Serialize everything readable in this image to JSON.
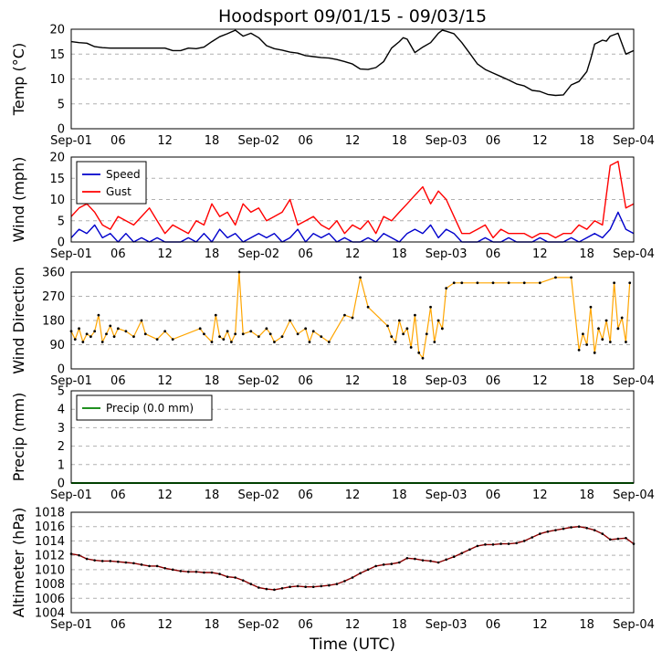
{
  "title": "Hoodsport 09/01/15 - 09/03/15",
  "xlabel": "Time (UTC)",
  "x_ticks": [
    "Sep-01",
    "06",
    "12",
    "18",
    "Sep-02",
    "06",
    "12",
    "18",
    "Sep-03",
    "06",
    "12",
    "18",
    "Sep-04"
  ],
  "x_range_hours": [
    0,
    72
  ],
  "colors": {
    "temp": "#000000",
    "speed": "#0000cc",
    "gust": "#ff0000",
    "direction_line": "#ffa500",
    "direction_marker": "#000000",
    "precip": "#008000",
    "altimeter_line": "#8b0000",
    "altimeter_marker": "#000000"
  },
  "chart_data": [
    {
      "id": "temp",
      "type": "line",
      "ylabel": "Temp (°C)",
      "ylim": [
        0,
        20
      ],
      "yticks": [
        "0",
        "5",
        "10",
        "15",
        "20"
      ],
      "grid": true,
      "series": [
        {
          "key": "temp",
          "x": [
            0,
            1,
            2,
            3,
            4,
            5,
            6,
            8,
            10,
            12,
            13,
            14,
            15,
            16,
            17,
            18,
            19,
            20,
            21,
            22,
            23,
            24,
            25,
            26,
            27,
            28,
            29,
            30,
            31,
            32,
            33,
            34,
            35,
            36,
            37,
            38,
            39,
            40,
            41,
            42,
            42.5,
            43,
            44,
            45,
            46,
            47,
            47.5,
            48,
            49,
            50,
            51,
            52,
            53,
            54,
            55,
            56,
            57,
            58,
            59,
            60,
            61,
            62,
            63,
            64,
            65,
            66,
            66.5,
            67,
            68,
            68.5,
            69,
            70,
            71,
            72
          ],
          "y": [
            17.5,
            17.3,
            17.2,
            16.5,
            16.3,
            16.2,
            16.2,
            16.2,
            16.2,
            16.2,
            15.7,
            15.7,
            16.2,
            16.1,
            16.4,
            17.5,
            18.5,
            19.1,
            19.8,
            18.6,
            19.2,
            18.3,
            16.7,
            16.1,
            15.8,
            15.4,
            15.2,
            14.7,
            14.5,
            14.3,
            14.2,
            13.9,
            13.5,
            13.0,
            12.0,
            11.9,
            12.3,
            13.5,
            16.2,
            17.5,
            18.3,
            18.0,
            15.3,
            16.4,
            17.3,
            19.2,
            19.8,
            19.6,
            19.1,
            17.3,
            15.2,
            13.0,
            11.9,
            11.2,
            10.5,
            9.8,
            9.0,
            8.6,
            7.7,
            7.5,
            6.9,
            6.7,
            6.8,
            8.8,
            9.5,
            11.5,
            14.0,
            17.0,
            17.8,
            17.6,
            18.6,
            19.2,
            15.0,
            15.7
          ]
        }
      ]
    },
    {
      "id": "wind",
      "type": "line",
      "ylabel": "Wind (mph)",
      "ylim": [
        0,
        20
      ],
      "yticks": [
        "0",
        "5",
        "10",
        "15",
        "20"
      ],
      "grid": true,
      "legend": {
        "position": "top-left"
      },
      "series": [
        {
          "key": "speed",
          "name": "Speed",
          "x": [
            0,
            1,
            2,
            3,
            4,
            5,
            6,
            7,
            8,
            9,
            10,
            11,
            12,
            13,
            14,
            15,
            16,
            17,
            18,
            19,
            20,
            21,
            22,
            23,
            24,
            25,
            26,
            27,
            28,
            29,
            30,
            31,
            32,
            33,
            34,
            35,
            36,
            37,
            38,
            39,
            40,
            41,
            42,
            43,
            44,
            45,
            46,
            47,
            48,
            49,
            50,
            51,
            52,
            53,
            54,
            55,
            56,
            57,
            58,
            59,
            60,
            61,
            62,
            63,
            64,
            65,
            66,
            67,
            68,
            69,
            70,
            71,
            72
          ],
          "y": [
            1,
            3,
            2,
            4,
            1,
            2,
            0,
            2,
            0,
            1,
            0,
            1,
            0,
            0,
            0,
            1,
            0,
            2,
            0,
            3,
            1,
            2,
            0,
            1,
            2,
            1,
            2,
            0,
            1,
            3,
            0,
            2,
            1,
            2,
            0,
            1,
            0,
            0,
            1,
            0,
            2,
            1,
            0,
            2,
            3,
            2,
            4,
            1,
            3,
            2,
            0,
            0,
            0,
            1,
            0,
            0,
            1,
            0,
            0,
            0,
            1,
            0,
            0,
            0,
            1,
            0,
            1,
            2,
            1,
            3,
            7,
            3,
            2
          ]
        },
        {
          "key": "gust",
          "name": "Gust",
          "x": [
            0,
            1,
            2,
            3,
            4,
            5,
            6,
            7,
            8,
            9,
            10,
            11,
            12,
            13,
            14,
            15,
            16,
            17,
            18,
            19,
            20,
            21,
            22,
            23,
            24,
            25,
            26,
            27,
            28,
            29,
            30,
            31,
            32,
            33,
            34,
            35,
            36,
            37,
            38,
            39,
            40,
            41,
            42,
            43,
            44,
            45,
            46,
            47,
            48,
            49,
            50,
            51,
            52,
            53,
            54,
            55,
            56,
            57,
            58,
            59,
            60,
            61,
            62,
            63,
            64,
            65,
            66,
            67,
            68,
            69,
            70,
            71,
            72
          ],
          "y": [
            6,
            8,
            9,
            7,
            4,
            3,
            6,
            5,
            4,
            6,
            8,
            5,
            2,
            4,
            3,
            2,
            5,
            4,
            9,
            6,
            7,
            4,
            9,
            7,
            8,
            5,
            6,
            7,
            10,
            4,
            5,
            6,
            4,
            3,
            5,
            2,
            4,
            3,
            5,
            2,
            6,
            5,
            7,
            9,
            11,
            13,
            9,
            12,
            10,
            6,
            2,
            2,
            3,
            4,
            1,
            3,
            2,
            2,
            2,
            1,
            2,
            2,
            1,
            2,
            2,
            4,
            3,
            5,
            4,
            18,
            19,
            8,
            9
          ]
        }
      ]
    },
    {
      "id": "direction",
      "type": "scatter",
      "ylabel": "Wind Direction",
      "ylim": [
        0,
        360
      ],
      "yticks": [
        "0",
        "90",
        "180",
        "270",
        "360"
      ],
      "grid": true,
      "series": [
        {
          "key": "direction",
          "x": [
            0,
            0.5,
            1,
            1.5,
            2,
            2.5,
            3,
            3.5,
            4,
            4.5,
            5,
            5.5,
            6,
            7,
            8,
            9,
            9.5,
            11,
            12,
            13,
            16.5,
            17,
            18,
            18.5,
            19,
            19.5,
            20,
            20.5,
            21,
            21.5,
            22,
            23,
            24,
            25,
            25.5,
            26,
            27,
            28,
            29,
            30,
            30.5,
            31,
            32,
            33,
            35,
            36,
            37,
            38,
            40.5,
            41,
            41.5,
            42,
            42.5,
            43,
            43.5,
            44,
            44.5,
            45,
            45.5,
            46,
            46.5,
            47,
            47.5,
            48,
            49,
            50,
            52,
            54,
            56,
            58,
            60,
            62,
            64,
            65,
            65.5,
            66,
            66.5,
            67,
            67.5,
            68,
            68.5,
            69,
            69.5,
            70,
            70.5,
            71,
            71.5
          ],
          "y": [
            140,
            110,
            150,
            100,
            130,
            120,
            140,
            200,
            100,
            130,
            160,
            120,
            150,
            140,
            120,
            180,
            130,
            110,
            140,
            110,
            150,
            130,
            100,
            200,
            120,
            110,
            140,
            100,
            130,
            360,
            130,
            140,
            120,
            150,
            130,
            100,
            120,
            180,
            130,
            150,
            100,
            140,
            120,
            100,
            200,
            190,
            340,
            230,
            160,
            120,
            100,
            180,
            130,
            150,
            80,
            200,
            60,
            40,
            130,
            230,
            100,
            180,
            150,
            300,
            320,
            320,
            320,
            320,
            320,
            320,
            320,
            340,
            340,
            70,
            130,
            90,
            230,
            60,
            150,
            110,
            180,
            100,
            320,
            150,
            190,
            100,
            320
          ]
        }
      ]
    },
    {
      "id": "precip",
      "type": "line",
      "ylabel": "Precip (mm)",
      "ylim": [
        0,
        5
      ],
      "yticks": [
        "0",
        "1",
        "2",
        "3",
        "4",
        "5"
      ],
      "grid": true,
      "legend": {
        "position": "top-left"
      },
      "series": [
        {
          "key": "precip",
          "name": "Precip (0.0 mm)",
          "x": [
            0,
            72
          ],
          "y": [
            0,
            0
          ]
        }
      ]
    },
    {
      "id": "altimeter",
      "type": "line",
      "ylabel": "Altimeter (hPa)",
      "ylim": [
        1004,
        1018
      ],
      "yticks": [
        "1004",
        "1006",
        "1008",
        "1010",
        "1012",
        "1014",
        "1016",
        "1018"
      ],
      "grid": true,
      "series": [
        {
          "key": "altimeter",
          "x": [
            0,
            1,
            2,
            3,
            4,
            5,
            6,
            7,
            8,
            9,
            10,
            11,
            12,
            13,
            14,
            15,
            16,
            17,
            18,
            19,
            20,
            21,
            22,
            23,
            24,
            25,
            26,
            27,
            28,
            29,
            30,
            31,
            32,
            33,
            34,
            35,
            36,
            37,
            38,
            39,
            40,
            41,
            42,
            43,
            44,
            45,
            46,
            47,
            48,
            49,
            50,
            51,
            52,
            53,
            54,
            55,
            56,
            57,
            58,
            59,
            60,
            61,
            62,
            63,
            64,
            65,
            66,
            67,
            68,
            69,
            70,
            71,
            72
          ],
          "y": [
            1012.2,
            1012.0,
            1011.5,
            1011.3,
            1011.2,
            1011.2,
            1011.1,
            1011.0,
            1010.9,
            1010.7,
            1010.5,
            1010.5,
            1010.2,
            1010.0,
            1009.8,
            1009.7,
            1009.7,
            1009.6,
            1009.6,
            1009.4,
            1009.0,
            1008.9,
            1008.5,
            1008.0,
            1007.5,
            1007.3,
            1007.2,
            1007.4,
            1007.6,
            1007.7,
            1007.6,
            1007.6,
            1007.7,
            1007.8,
            1008.0,
            1008.4,
            1008.9,
            1009.5,
            1010.0,
            1010.5,
            1010.7,
            1010.8,
            1011.0,
            1011.6,
            1011.5,
            1011.3,
            1011.2,
            1011.0,
            1011.4,
            1011.8,
            1012.3,
            1012.8,
            1013.3,
            1013.5,
            1013.5,
            1013.6,
            1013.6,
            1013.7,
            1014.0,
            1014.5,
            1015.0,
            1015.3,
            1015.5,
            1015.7,
            1015.9,
            1016.0,
            1015.8,
            1015.5,
            1015.0,
            1014.2,
            1014.3,
            1014.4,
            1013.6
          ]
        }
      ]
    }
  ]
}
